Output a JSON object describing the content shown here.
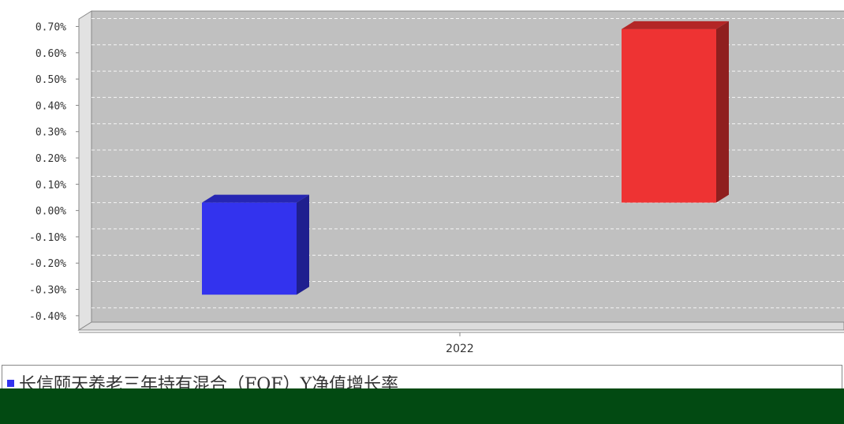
{
  "chart_data": {
    "type": "bar",
    "title": "",
    "xlabel": "",
    "ylabel": "",
    "categories": [
      "2022"
    ],
    "ylim": [
      -0.45,
      0.7
    ],
    "y_tick_values": [
      0.7,
      0.6,
      0.5,
      0.4,
      0.3,
      0.2,
      0.1,
      0.0,
      -0.1,
      -0.2,
      -0.3,
      -0.4
    ],
    "y_tick_labels": [
      "0.70%",
      "0.60%",
      "0.50%",
      "0.40%",
      "0.30%",
      "0.20%",
      "0.10%",
      "0.00%",
      "-0.10%",
      "-0.20%",
      "-0.30%",
      "-0.40%"
    ],
    "grid": true,
    "legend_position": "bottom",
    "series": [
      {
        "name": "长信颐天养老三年持有混合（FOF）Y净值增长率",
        "values": [
          -0.35
        ],
        "color": "#3333ee"
      },
      {
        "name": "",
        "values": [
          0.66
        ],
        "color": "#ee3333"
      }
    ]
  },
  "colors": {
    "plot_background": "#c0c0c0",
    "overlay_band": "#024a12"
  }
}
